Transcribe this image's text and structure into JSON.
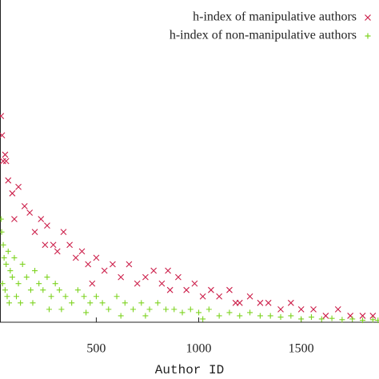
{
  "chart_data": {
    "type": "scatter",
    "xlabel": "Author ID",
    "xlim": [
      30,
      1880
    ],
    "ylim": [
      0,
      50
    ],
    "xticks": [
      500,
      1000,
      1500
    ],
    "legend": "top-right",
    "series": [
      {
        "name": "h-index of manipulative authors",
        "color": "#cc1f4a",
        "marker": "x",
        "x": [
          35,
          40,
          45,
          55,
          60,
          70,
          90,
          100,
          120,
          150,
          175,
          200,
          230,
          250,
          260,
          290,
          310,
          340,
          370,
          400,
          430,
          460,
          480,
          500,
          540,
          580,
          620,
          660,
          700,
          740,
          780,
          820,
          850,
          860,
          900,
          940,
          980,
          1020,
          1060,
          1100,
          1150,
          1180,
          1200,
          1250,
          1300,
          1340,
          1400,
          1450,
          1500,
          1560,
          1620,
          1680,
          1740,
          1800,
          1850
        ],
        "values": [
          32,
          29,
          25,
          26,
          25,
          22,
          20,
          16,
          21,
          18,
          17,
          14,
          16,
          12,
          15,
          12,
          11,
          14,
          12,
          10,
          11,
          9,
          6,
          10,
          8,
          9,
          7,
          9,
          6,
          7,
          8,
          6,
          8,
          5,
          7,
          5,
          6,
          4,
          5,
          4,
          5,
          3,
          3,
          4,
          3,
          3,
          2,
          3,
          2,
          2,
          1,
          2,
          1,
          1,
          1
        ]
      },
      {
        "name": "h-index of non-manipulative authors",
        "color": "#7ed321",
        "marker": "+",
        "x": [
          35,
          38,
          42,
          46,
          50,
          55,
          60,
          65,
          70,
          75,
          80,
          90,
          100,
          110,
          120,
          130,
          140,
          160,
          180,
          190,
          200,
          220,
          240,
          260,
          270,
          280,
          300,
          320,
          330,
          350,
          380,
          410,
          440,
          450,
          470,
          500,
          530,
          560,
          600,
          620,
          640,
          680,
          720,
          740,
          760,
          800,
          840,
          880,
          920,
          960,
          1000,
          1020,
          1050,
          1100,
          1150,
          1200,
          1250,
          1300,
          1350,
          1400,
          1450,
          1500,
          1550,
          1600,
          1650,
          1700,
          1750,
          1800,
          1850,
          1875
        ],
        "values": [
          16,
          14,
          6,
          12,
          10,
          5,
          9,
          4,
          11,
          3,
          8,
          7,
          10,
          4,
          6,
          3,
          9,
          7,
          5,
          3,
          8,
          6,
          5,
          7,
          2,
          4,
          6,
          5,
          2,
          4,
          3,
          5,
          4,
          1.5,
          3,
          4,
          3,
          2,
          4,
          1,
          3,
          2,
          3,
          1,
          2,
          3,
          2,
          2,
          1.5,
          2,
          1.5,
          0.5,
          2,
          1,
          1.5,
          1,
          1.5,
          1,
          1,
          0.8,
          1,
          0.5,
          0.8,
          0.5,
          0.6,
          0.4,
          0.5,
          0.3,
          0.4,
          0.3
        ]
      }
    ]
  }
}
